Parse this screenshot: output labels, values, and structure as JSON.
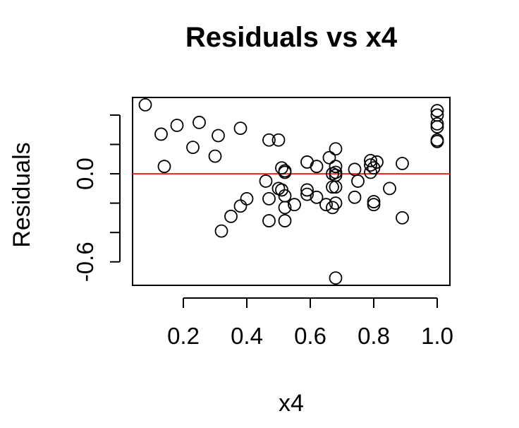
{
  "chart_data": {
    "type": "scatter",
    "title": "Residuals vs x4",
    "xlabel": "x4",
    "ylabel": "Residuals",
    "xlim": [
      0.04,
      1.04
    ],
    "ylim": [
      -0.76,
      0.52
    ],
    "xticks": [
      0.2,
      0.4,
      0.6,
      0.8,
      1.0
    ],
    "xtick_labels": [
      "0.2",
      "0.4",
      "0.6",
      "0.8",
      "1.0"
    ],
    "yticks": [
      -0.6,
      -0.4,
      -0.2,
      0.0,
      0.2,
      0.4
    ],
    "ytick_labels": [
      "-0.6",
      "",
      "",
      "0.0",
      "",
      ""
    ],
    "reference_line": {
      "y": 0.0,
      "color": "#e8261d"
    },
    "point_color": "#000000",
    "grid": false,
    "legend": "none",
    "points": [
      [
        0.08,
        0.47
      ],
      [
        0.13,
        0.27
      ],
      [
        0.14,
        0.05
      ],
      [
        0.18,
        0.33
      ],
      [
        0.23,
        0.18
      ],
      [
        0.25,
        0.35
      ],
      [
        0.3,
        0.12
      ],
      [
        0.31,
        0.26
      ],
      [
        0.32,
        -0.39
      ],
      [
        0.35,
        -0.29
      ],
      [
        0.38,
        -0.22
      ],
      [
        0.38,
        0.31
      ],
      [
        0.4,
        -0.17
      ],
      [
        0.46,
        -0.05
      ],
      [
        0.47,
        0.23
      ],
      [
        0.47,
        -0.17
      ],
      [
        0.47,
        -0.32
      ],
      [
        0.5,
        -0.1
      ],
      [
        0.5,
        0.23
      ],
      [
        0.51,
        0.04
      ],
      [
        0.51,
        -0.11
      ],
      [
        0.52,
        0.01
      ],
      [
        0.52,
        0.02
      ],
      [
        0.52,
        -0.15
      ],
      [
        0.52,
        -0.23
      ],
      [
        0.52,
        -0.32
      ],
      [
        0.55,
        -0.21
      ],
      [
        0.59,
        0.08
      ],
      [
        0.59,
        -0.11
      ],
      [
        0.59,
        -0.14
      ],
      [
        0.62,
        0.05
      ],
      [
        0.62,
        -0.16
      ],
      [
        0.65,
        -0.21
      ],
      [
        0.66,
        0.11
      ],
      [
        0.67,
        -0.23
      ],
      [
        0.67,
        0.0
      ],
      [
        0.67,
        -0.09
      ],
      [
        0.68,
        0.17
      ],
      [
        0.68,
        0.05
      ],
      [
        0.68,
        0.01
      ],
      [
        0.68,
        -0.01
      ],
      [
        0.68,
        -0.09
      ],
      [
        0.68,
        -0.2
      ],
      [
        0.68,
        -0.71
      ],
      [
        0.74,
        0.03
      ],
      [
        0.74,
        -0.16
      ],
      [
        0.75,
        -0.05
      ],
      [
        0.79,
        0.09
      ],
      [
        0.79,
        0.06
      ],
      [
        0.79,
        0.01
      ],
      [
        0.8,
        0.04
      ],
      [
        0.8,
        -0.19
      ],
      [
        0.8,
        -0.21
      ],
      [
        0.81,
        0.08
      ],
      [
        0.85,
        -0.1
      ],
      [
        0.89,
        0.07
      ],
      [
        0.89,
        -0.3
      ],
      [
        1.0,
        0.43
      ],
      [
        1.0,
        0.4
      ],
      [
        1.0,
        0.34
      ],
      [
        1.0,
        0.32
      ],
      [
        1.0,
        0.23
      ],
      [
        1.0,
        0.22
      ]
    ]
  }
}
